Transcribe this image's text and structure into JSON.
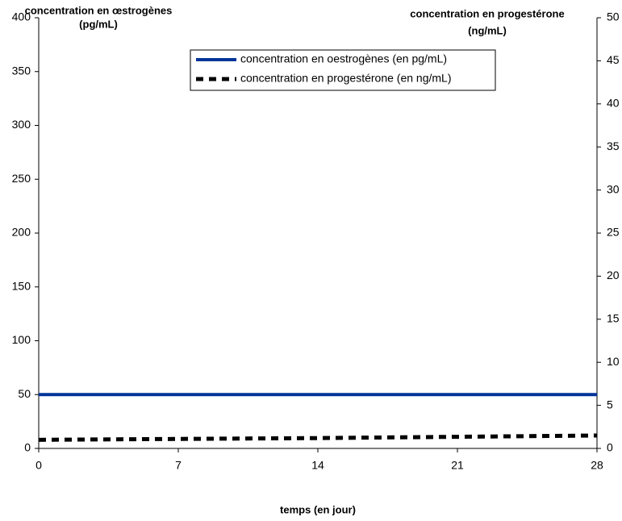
{
  "chart_data": {
    "type": "line",
    "y_label": [
      "concentration en œstrogènes",
      "(pg/mL)"
    ],
    "y2_label": [
      "concentration en progestérone",
      "(ng/mL)"
    ],
    "x_label": "temps (en jour)",
    "x": [
      0,
      7,
      14,
      21,
      28
    ],
    "xlim": [
      0,
      28
    ],
    "xticks": [
      0,
      7,
      14,
      21,
      28
    ],
    "ylim": [
      0,
      400
    ],
    "yticks": [
      0,
      50,
      100,
      150,
      200,
      250,
      300,
      350,
      400
    ],
    "y2lim": [
      0,
      50
    ],
    "y2ticks": [
      0,
      5,
      10,
      15,
      20,
      25,
      30,
      35,
      40,
      45,
      50
    ],
    "grid": false,
    "series": [
      {
        "name": "concentration en oestrogènes (en pg/mL)",
        "color": "#003399",
        "style": "solid",
        "values": [
          50,
          50,
          50,
          50,
          50
        ]
      },
      {
        "name": "concentration en progestérone (en ng/mL)",
        "color": "#000000",
        "style": "dashed",
        "axis": "y2",
        "values": [
          1.0,
          1.1,
          1.2,
          1.35,
          1.5
        ]
      }
    ]
  }
}
